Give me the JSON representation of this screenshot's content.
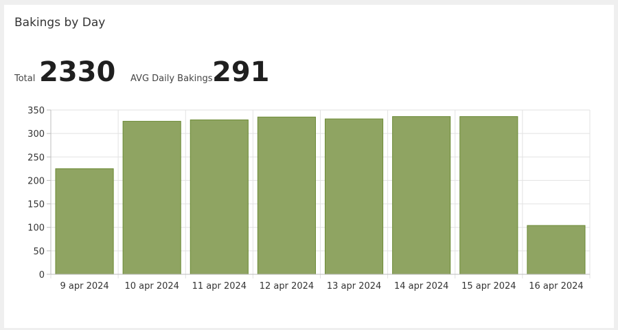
{
  "card": {
    "title": "Bakings by Day"
  },
  "stats": {
    "total_label": "Total",
    "total_value": "2330",
    "avg_label": "AVG Daily Bakings",
    "avg_value": "291"
  },
  "colors": {
    "bar_fill": "#8fa462",
    "bar_stroke": "#6b8a35",
    "grid": "#e2e2e2",
    "axis": "#bdbdbd"
  },
  "chart_data": {
    "type": "bar",
    "categories": [
      "9 apr 2024",
      "10 apr 2024",
      "11 apr 2024",
      "12 apr 2024",
      "13 apr 2024",
      "14 apr 2024",
      "15 apr 2024",
      "16 apr 2024"
    ],
    "values": [
      225,
      326,
      329,
      335,
      331,
      336,
      336,
      104
    ],
    "yticks": [
      0,
      50,
      100,
      150,
      200,
      250,
      300,
      350
    ],
    "ylim": [
      0,
      350
    ],
    "grid": true,
    "legend": "none",
    "title": "",
    "xlabel": "",
    "ylabel": ""
  }
}
